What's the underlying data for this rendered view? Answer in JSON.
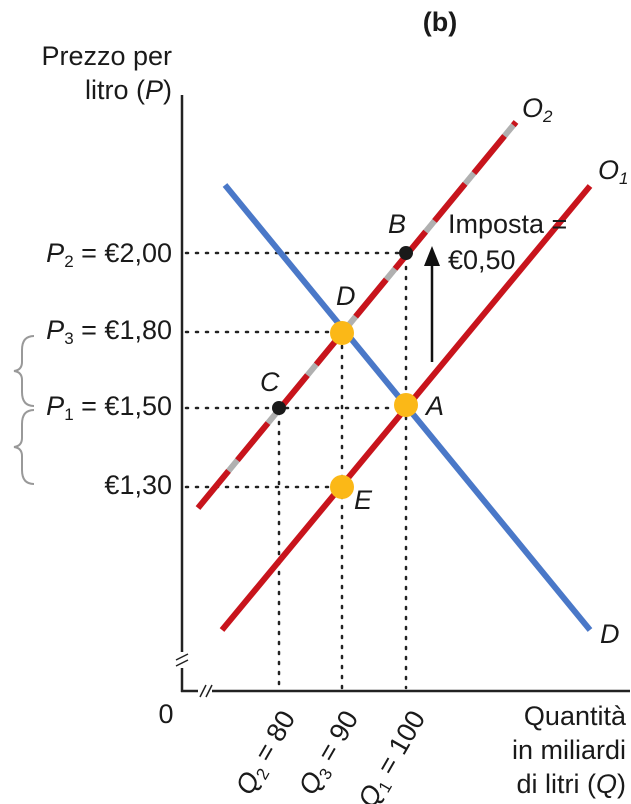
{
  "panel": "(b)",
  "y_axis": {
    "line1": "Prezzo per",
    "line2": {
      "text": "litro (",
      "symbol": "P",
      "close": ")"
    }
  },
  "x_axis": {
    "line1": "Quantità",
    "line2": "in miliardi",
    "line3": {
      "text": "di litri (",
      "symbol": "Q",
      "close": ")"
    }
  },
  "origin": "0",
  "curves": {
    "o2": {
      "symbol": "O",
      "sub": "2"
    },
    "o1": {
      "symbol": "O",
      "sub": "1"
    },
    "demand": "D"
  },
  "points": {
    "b": "B",
    "d": "D",
    "c": "C",
    "a": "A",
    "e": "E"
  },
  "tax": {
    "line1": "Imposta =",
    "line2": "€0,50"
  },
  "price_labels": [
    {
      "symbol": "P",
      "sub": "2",
      "text": " = €2,00"
    },
    {
      "symbol": "P",
      "sub": "3",
      "text": " = €1,80"
    },
    {
      "symbol": "P",
      "sub": "1",
      "text": " = €1,50"
    },
    {
      "text": "€1,30"
    }
  ],
  "quantity_labels": [
    {
      "symbol": "Q",
      "sub": "2",
      "text": " = 80"
    },
    {
      "symbol": "Q",
      "sub": "3",
      "text": " = 90"
    },
    {
      "symbol": "Q",
      "sub": "1",
      "text": " = 100"
    }
  ]
}
